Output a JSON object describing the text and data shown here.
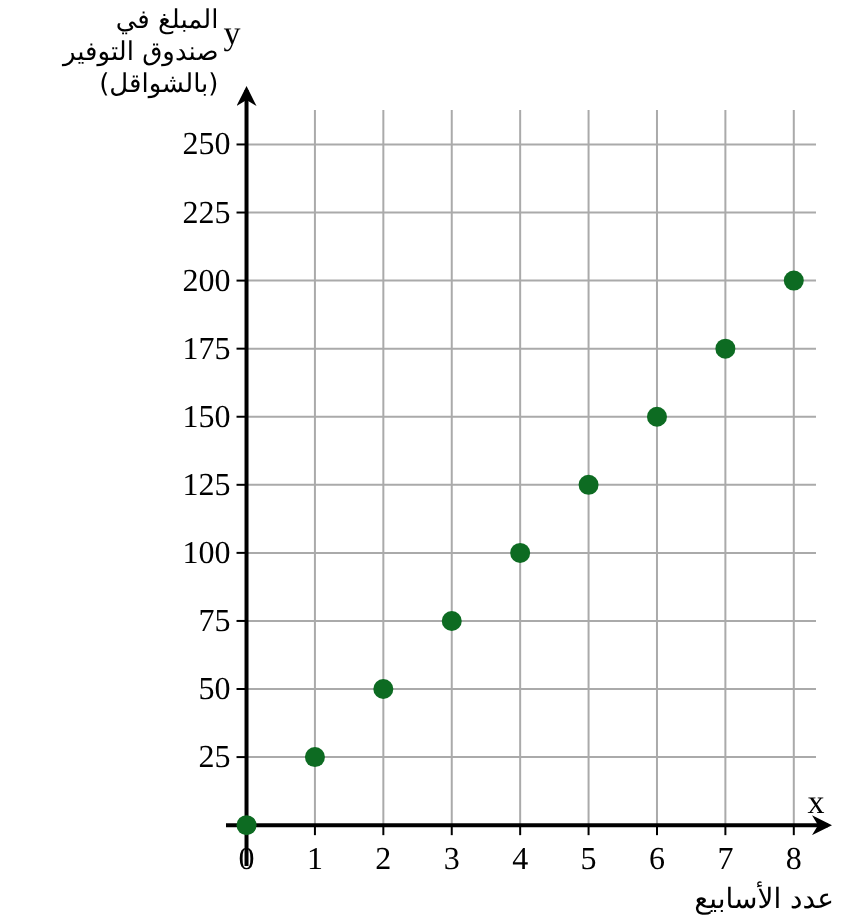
{
  "chart_data": {
    "type": "scatter",
    "ylabel": "المبلغ في\nصندوق التوفير\n(بالشواقل)",
    "xlabel": "عدد الأسابيع",
    "annotations": [
      "x",
      "y"
    ],
    "x": [
      0,
      1,
      2,
      3,
      4,
      5,
      6,
      7,
      8
    ],
    "series": [
      {
        "color": "#0d6b22",
        "values": [
          0,
          25,
          50,
          75,
          100,
          125,
          150,
          175,
          200
        ]
      }
    ],
    "xlim": [
      -0.3,
      8.5
    ],
    "ylim": [
      -15,
      270
    ],
    "xticks": [
      0,
      1,
      2,
      3,
      4,
      5,
      6,
      7,
      8
    ],
    "yticks": [
      25,
      50,
      75,
      100,
      125,
      150,
      175,
      200,
      225,
      250
    ],
    "grid": true,
    "marker": "circle"
  }
}
